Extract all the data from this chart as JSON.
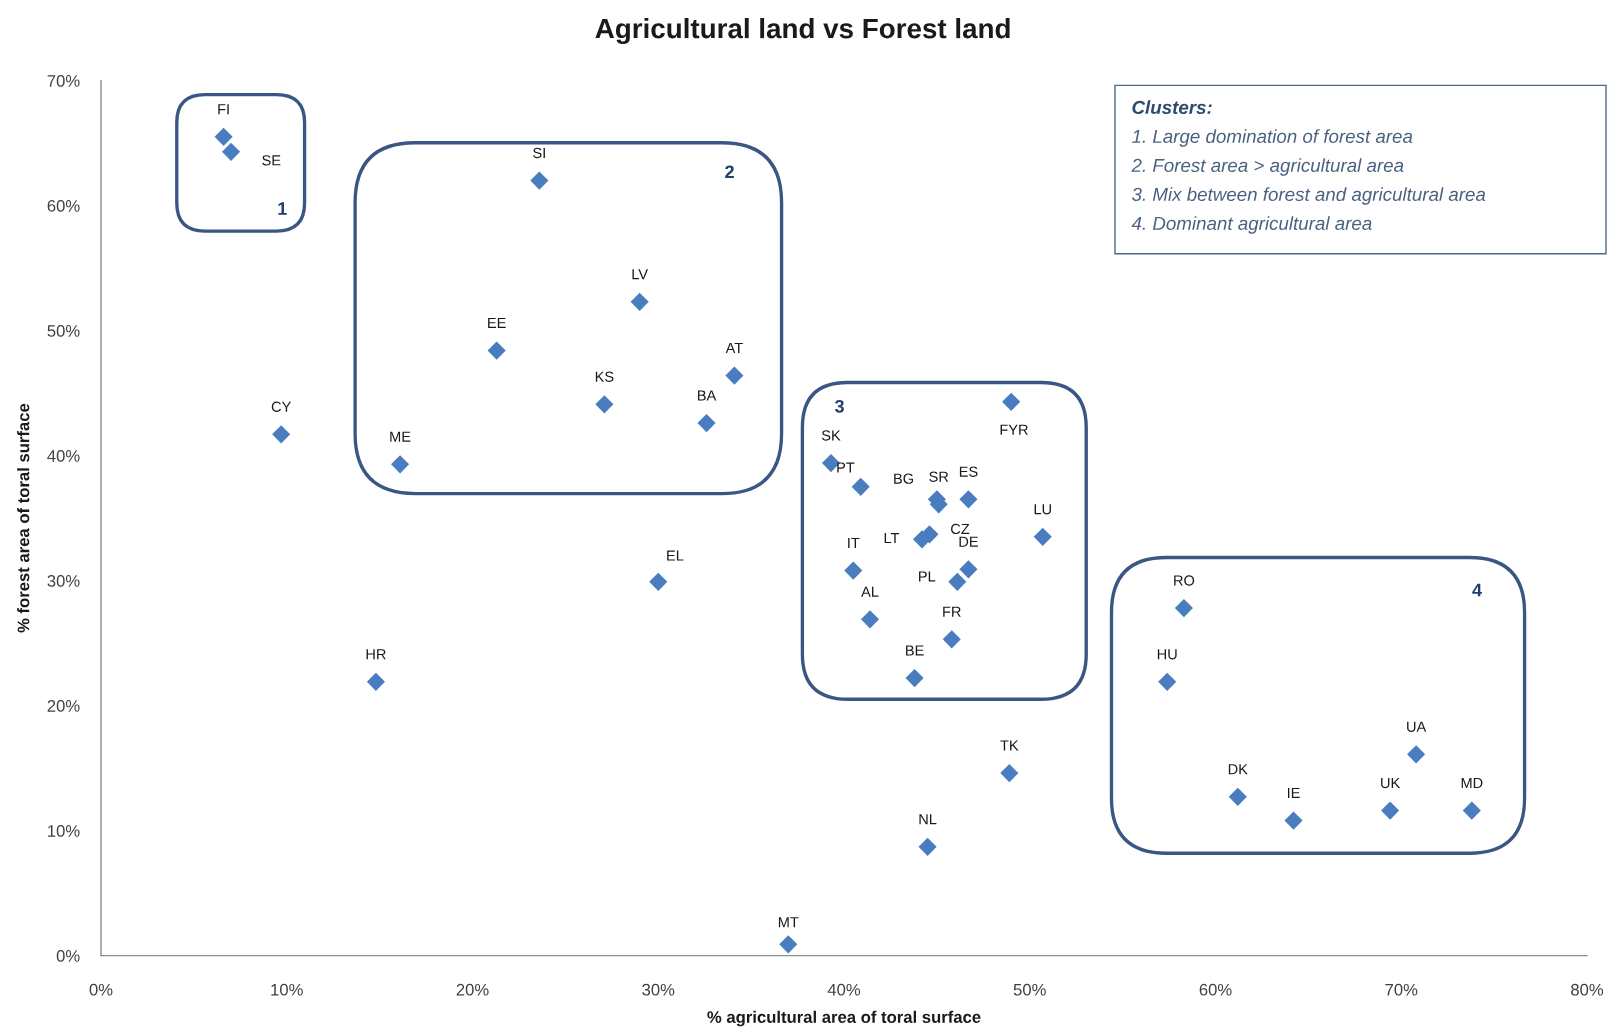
{
  "chart_data": {
    "type": "scatter",
    "title": "Agricultural land vs Forest land",
    "xlabel": "% agricultural area of toral surface",
    "ylabel": "% forest area of toral surface",
    "xlim": [
      0,
      80
    ],
    "ylim": [
      0,
      70
    ],
    "xticks": [
      {
        "value": 0,
        "label": "0%"
      },
      {
        "value": 10,
        "label": "10%"
      },
      {
        "value": 20,
        "label": "20%"
      },
      {
        "value": 30,
        "label": "30%"
      },
      {
        "value": 40,
        "label": "40%"
      },
      {
        "value": 50,
        "label": "50%"
      },
      {
        "value": 60,
        "label": "60%"
      },
      {
        "value": 70,
        "label": "70%"
      },
      {
        "value": 80,
        "label": "80%"
      }
    ],
    "yticks": [
      {
        "value": 0,
        "label": "0%"
      },
      {
        "value": 10,
        "label": "10%"
      },
      {
        "value": 20,
        "label": "20%"
      },
      {
        "value": 30,
        "label": "30%"
      },
      {
        "value": 40,
        "label": "40%"
      },
      {
        "value": 50,
        "label": "50%"
      },
      {
        "value": 60,
        "label": "60%"
      },
      {
        "value": 70,
        "label": "70%"
      }
    ],
    "marker": "diamond",
    "series": [
      {
        "color": "#4a7dbf",
        "x": [
          6.6,
          7.0,
          9.7,
          14.8,
          16.1,
          21.3,
          23.6,
          27.1,
          29.0,
          32.6,
          34.1,
          30.0,
          37.0,
          39.3,
          40.9,
          40.5,
          41.4,
          43.8,
          44.5,
          44.2,
          44.6,
          45.0,
          45.1,
          45.8,
          46.1,
          46.7,
          46.7,
          48.9,
          49.0,
          50.7,
          57.4,
          58.3,
          61.2,
          64.2,
          69.4,
          70.8,
          73.8
        ],
        "values": [
          65.5,
          64.3,
          41.7,
          21.9,
          39.3,
          48.4,
          62.0,
          44.1,
          52.3,
          42.6,
          46.4,
          29.9,
          0.9,
          39.4,
          37.5,
          30.8,
          26.9,
          22.2,
          8.7,
          33.3,
          33.7,
          36.5,
          36.1,
          25.3,
          29.9,
          36.5,
          30.9,
          14.6,
          44.3,
          33.5,
          21.9,
          27.8,
          12.7,
          10.8,
          11.6,
          16.1,
          11.6
        ]
      }
    ],
    "annotations": [
      {
        "text": "FI",
        "x": 6.6,
        "y": 65.5
      },
      {
        "text": "SE",
        "x": 7.0,
        "y": 64.3
      },
      {
        "text": "CY",
        "x": 9.7,
        "y": 41.7
      },
      {
        "text": "HR",
        "x": 14.8,
        "y": 21.9
      },
      {
        "text": "ME",
        "x": 16.1,
        "y": 39.3
      },
      {
        "text": "EE",
        "x": 21.3,
        "y": 48.4
      },
      {
        "text": "SI",
        "x": 23.6,
        "y": 62.0
      },
      {
        "text": "KS",
        "x": 27.1,
        "y": 44.1
      },
      {
        "text": "LV",
        "x": 29.0,
        "y": 52.3
      },
      {
        "text": "BA",
        "x": 32.6,
        "y": 42.6
      },
      {
        "text": "AT",
        "x": 34.1,
        "y": 46.4
      },
      {
        "text": "EL",
        "x": 30.0,
        "y": 29.9
      },
      {
        "text": "MT",
        "x": 37.0,
        "y": 0.9
      },
      {
        "text": "SK",
        "x": 39.3,
        "y": 39.4
      },
      {
        "text": "PT",
        "x": 40.9,
        "y": 37.5
      },
      {
        "text": "IT",
        "x": 40.5,
        "y": 30.8
      },
      {
        "text": "AL",
        "x": 41.4,
        "y": 26.9
      },
      {
        "text": "BE",
        "x": 43.8,
        "y": 22.2
      },
      {
        "text": "NL",
        "x": 44.5,
        "y": 8.7
      },
      {
        "text": "LT",
        "x": 44.2,
        "y": 33.3
      },
      {
        "text": "CZ",
        "x": 44.6,
        "y": 33.7
      },
      {
        "text": "BG",
        "x": 45.0,
        "y": 36.5
      },
      {
        "text": "SR",
        "x": 45.1,
        "y": 36.1
      },
      {
        "text": "FR",
        "x": 45.8,
        "y": 25.3
      },
      {
        "text": "PL",
        "x": 46.1,
        "y": 29.9
      },
      {
        "text": "ES",
        "x": 46.7,
        "y": 36.5
      },
      {
        "text": "DE",
        "x": 46.7,
        "y": 30.9
      },
      {
        "text": "TK",
        "x": 48.9,
        "y": 14.6
      },
      {
        "text": "FYR",
        "x": 49.0,
        "y": 44.3
      },
      {
        "text": "LU",
        "x": 50.7,
        "y": 33.5
      },
      {
        "text": "HU",
        "x": 57.4,
        "y": 21.9
      },
      {
        "text": "RO",
        "x": 58.3,
        "y": 27.8
      },
      {
        "text": "DK",
        "x": 61.2,
        "y": 12.7
      },
      {
        "text": "IE",
        "x": 64.2,
        "y": 10.8
      },
      {
        "text": "UK",
        "x": 69.4,
        "y": 11.6
      },
      {
        "text": "UA",
        "x": 70.8,
        "y": 16.1
      },
      {
        "text": "MD",
        "x": 73.8,
        "y": 11.6
      },
      "1",
      "2",
      "3",
      "4",
      "Clusters:",
      "1. Large domination of forest area",
      "2. Forest area > agricultural area",
      "3. Mix between forest and agricultural area",
      "4. Dominant agricultural area"
    ]
  }
}
